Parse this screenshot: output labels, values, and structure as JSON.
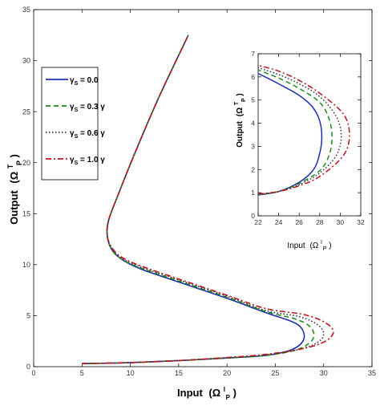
{
  "chart_data": [
    {
      "type": "line",
      "role": "main",
      "xlabel": "Input",
      "xlabel_symbol": "(Ω",
      "xlabel_sup": "I",
      "xlabel_sub": "P",
      "xlabel_close": ")",
      "ylabel": "Output",
      "ylabel_symbol": "(Ω",
      "ylabel_sup": "T",
      "ylabel_sub": "P",
      "ylabel_close": ")",
      "xlim": [
        0,
        35
      ],
      "ylim": [
        0,
        35
      ],
      "xticks": [
        0,
        5,
        10,
        15,
        20,
        25,
        30,
        35
      ],
      "yticks": [
        0,
        5,
        10,
        15,
        20,
        25,
        30,
        35
      ],
      "legend_position": "upper-left",
      "series": [
        {
          "name": "γs = 0.0",
          "legend_symbol": "γ",
          "legend_sub": "S",
          "legend_text": " = 0.0",
          "color": "#1f2fb0",
          "dash": "none",
          "x": [
            5.0,
            10.0,
            15.0,
            20.0,
            24.0,
            26.5,
            27.6,
            28.0,
            27.6,
            26.5,
            24.0,
            20.0,
            15.0,
            11.0,
            9.0,
            8.0,
            7.6,
            7.8,
            8.8,
            10.5,
            13.0,
            16.0
          ],
          "y": [
            0.3,
            0.4,
            0.6,
            0.85,
            1.1,
            1.6,
            2.2,
            3.0,
            3.9,
            4.5,
            5.3,
            6.7,
            8.3,
            9.6,
            10.6,
            11.6,
            13.0,
            14.5,
            17.0,
            21.0,
            26.5,
            32.5
          ]
        },
        {
          "name": "γs = 0.3γ",
          "legend_symbol": "γ",
          "legend_sub": "S",
          "legend_text": " = 0.3 γ",
          "color": "#1d8a1d",
          "dash": "6,4",
          "x": [
            5.0,
            10.0,
            15.0,
            20.0,
            24.0,
            27.0,
            28.5,
            29.0,
            28.5,
            27.0,
            24.0,
            20.0,
            15.0,
            11.0,
            9.0,
            8.0,
            7.6,
            7.8,
            8.8,
            10.5,
            13.0,
            16.0
          ],
          "y": [
            0.3,
            0.4,
            0.6,
            0.85,
            1.1,
            1.6,
            2.3,
            3.1,
            4.0,
            4.7,
            5.4,
            6.8,
            8.4,
            9.7,
            10.6,
            11.6,
            13.0,
            14.5,
            17.0,
            21.0,
            26.5,
            32.5
          ]
        },
        {
          "name": "γs = 0.6γ",
          "legend_symbol": "γ",
          "legend_sub": "S",
          "legend_text": " = 0.6 γ",
          "color": "#333333",
          "dash": "1.5,2.5",
          "x": [
            5.0,
            10.0,
            15.0,
            20.0,
            24.0,
            27.5,
            29.4,
            30.0,
            29.4,
            27.5,
            24.0,
            20.0,
            15.0,
            11.0,
            9.0,
            8.0,
            7.6,
            7.8,
            8.8,
            10.5,
            13.0,
            16.0
          ],
          "y": [
            0.3,
            0.4,
            0.6,
            0.85,
            1.15,
            1.7,
            2.4,
            3.2,
            4.1,
            4.9,
            5.5,
            6.9,
            8.5,
            9.8,
            10.7,
            11.7,
            13.0,
            14.5,
            17.0,
            21.0,
            26.5,
            32.5
          ]
        },
        {
          "name": "γs = 1.0γ",
          "legend_symbol": "γ",
          "legend_sub": "S",
          "legend_text": " = 1.0 γ",
          "color": "#c0141c",
          "dash": "7,3,2,3",
          "x": [
            5.0,
            10.0,
            15.0,
            20.0,
            24.0,
            28.0,
            30.2,
            31.0,
            30.2,
            28.0,
            24.0,
            20.0,
            15.0,
            11.0,
            9.0,
            8.0,
            7.6,
            7.8,
            8.8,
            10.5,
            13.0,
            16.0
          ],
          "y": [
            0.3,
            0.4,
            0.6,
            0.9,
            1.2,
            1.8,
            2.5,
            3.4,
            4.3,
            5.1,
            5.7,
            7.0,
            8.6,
            9.9,
            10.8,
            11.8,
            13.0,
            14.5,
            17.0,
            21.0,
            26.5,
            32.5
          ]
        }
      ]
    },
    {
      "type": "line",
      "role": "inset",
      "xlabel": "Input",
      "xlabel_symbol": "(Ω",
      "xlabel_sup": "I",
      "xlabel_sub": "P",
      "xlabel_close": ")",
      "ylabel": "Output",
      "ylabel_symbol": "(Ω",
      "ylabel_sup": "T",
      "ylabel_sub": "P",
      "ylabel_close": ")",
      "xlim": [
        22,
        32
      ],
      "ylim": [
        0,
        7
      ],
      "xticks": [
        22,
        24,
        26,
        28,
        30,
        32
      ],
      "yticks": [
        0,
        1,
        2,
        3,
        4,
        5,
        6,
        7
      ],
      "series": [
        {
          "name": "γs = 0.0",
          "color": "#1f2fb0",
          "dash": "none",
          "x": [
            22.0,
            24.0,
            26.0,
            27.4,
            28.0,
            28.2,
            28.0,
            27.3,
            26.0,
            24.0,
            22.0
          ],
          "y": [
            0.9,
            1.05,
            1.45,
            2.0,
            2.7,
            3.4,
            4.1,
            4.7,
            5.2,
            5.7,
            6.15
          ]
        },
        {
          "name": "γs = 0.3γ",
          "color": "#1d8a1d",
          "dash": "6,4",
          "x": [
            22.0,
            24.0,
            26.0,
            28.0,
            28.9,
            29.2,
            28.9,
            28.0,
            26.0,
            24.0,
            22.0
          ],
          "y": [
            0.92,
            1.05,
            1.4,
            1.95,
            2.6,
            3.4,
            4.2,
            4.9,
            5.5,
            5.95,
            6.3
          ]
        },
        {
          "name": "γs = 0.6γ",
          "color": "#333333",
          "dash": "1.5,2.5",
          "x": [
            22.0,
            24.0,
            26.0,
            28.0,
            29.6,
            30.1,
            29.6,
            28.0,
            26.0,
            24.0,
            22.0
          ],
          "y": [
            0.93,
            1.05,
            1.35,
            1.85,
            2.6,
            3.45,
            4.3,
            5.15,
            5.7,
            6.1,
            6.4
          ]
        },
        {
          "name": "γs = 1.0γ",
          "color": "#c0141c",
          "dash": "7,3,2,3",
          "x": [
            22.0,
            24.0,
            26.0,
            28.0,
            30.3,
            30.9,
            30.3,
            28.0,
            26.0,
            24.0,
            22.0
          ],
          "y": [
            0.95,
            1.05,
            1.3,
            1.7,
            2.6,
            3.5,
            4.4,
            5.3,
            5.85,
            6.25,
            6.5
          ]
        }
      ]
    }
  ]
}
